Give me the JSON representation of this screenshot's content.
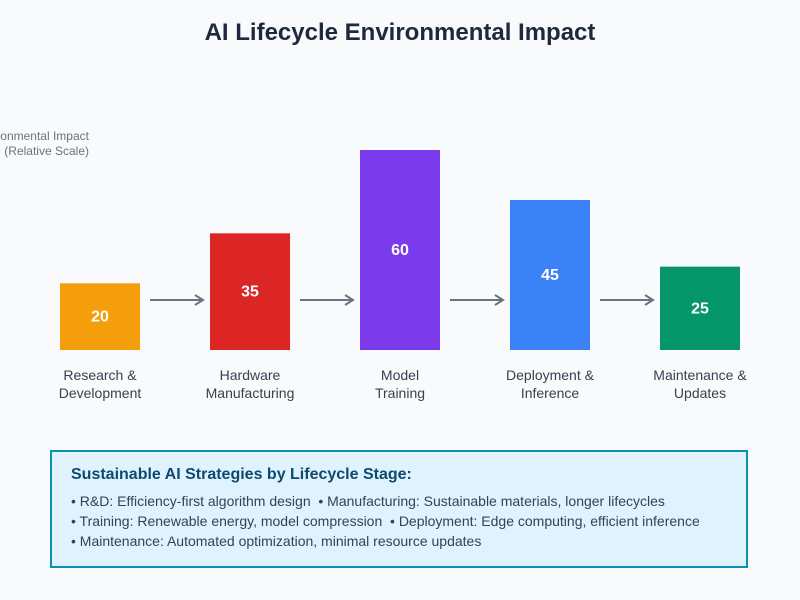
{
  "chart_data": {
    "type": "bar",
    "title": "AI Lifecycle Environmental Impact",
    "ylabel": [
      "Environmental Impact",
      "(Relative Scale)"
    ],
    "xlabel": "",
    "ylim": [
      0,
      60
    ],
    "grid": false,
    "categories": [
      [
        "Research &",
        "Development"
      ],
      [
        "Hardware",
        "Manufacturing"
      ],
      [
        "Model",
        "Training"
      ],
      [
        "Deployment &",
        "Inference"
      ],
      [
        "Maintenance &",
        "Updates"
      ]
    ],
    "values": [
      20,
      35,
      60,
      45,
      25
    ],
    "colors": [
      "#f59e0b",
      "#dc2626",
      "#7c3aed",
      "#3b82f6",
      "#059669"
    ],
    "arrows_between_stages": true
  },
  "strategies": {
    "title": "Sustainable AI Strategies by Lifecycle Stage:",
    "lines": [
      "• R&D: Efficiency-first algorithm design  • Manufacturing: Sustainable materials, longer lifecycles",
      "• Training: Renewable energy, model compression  • Deployment: Edge computing, efficient inference",
      "• Maintenance: Automated optimization, minimal resource updates"
    ]
  }
}
